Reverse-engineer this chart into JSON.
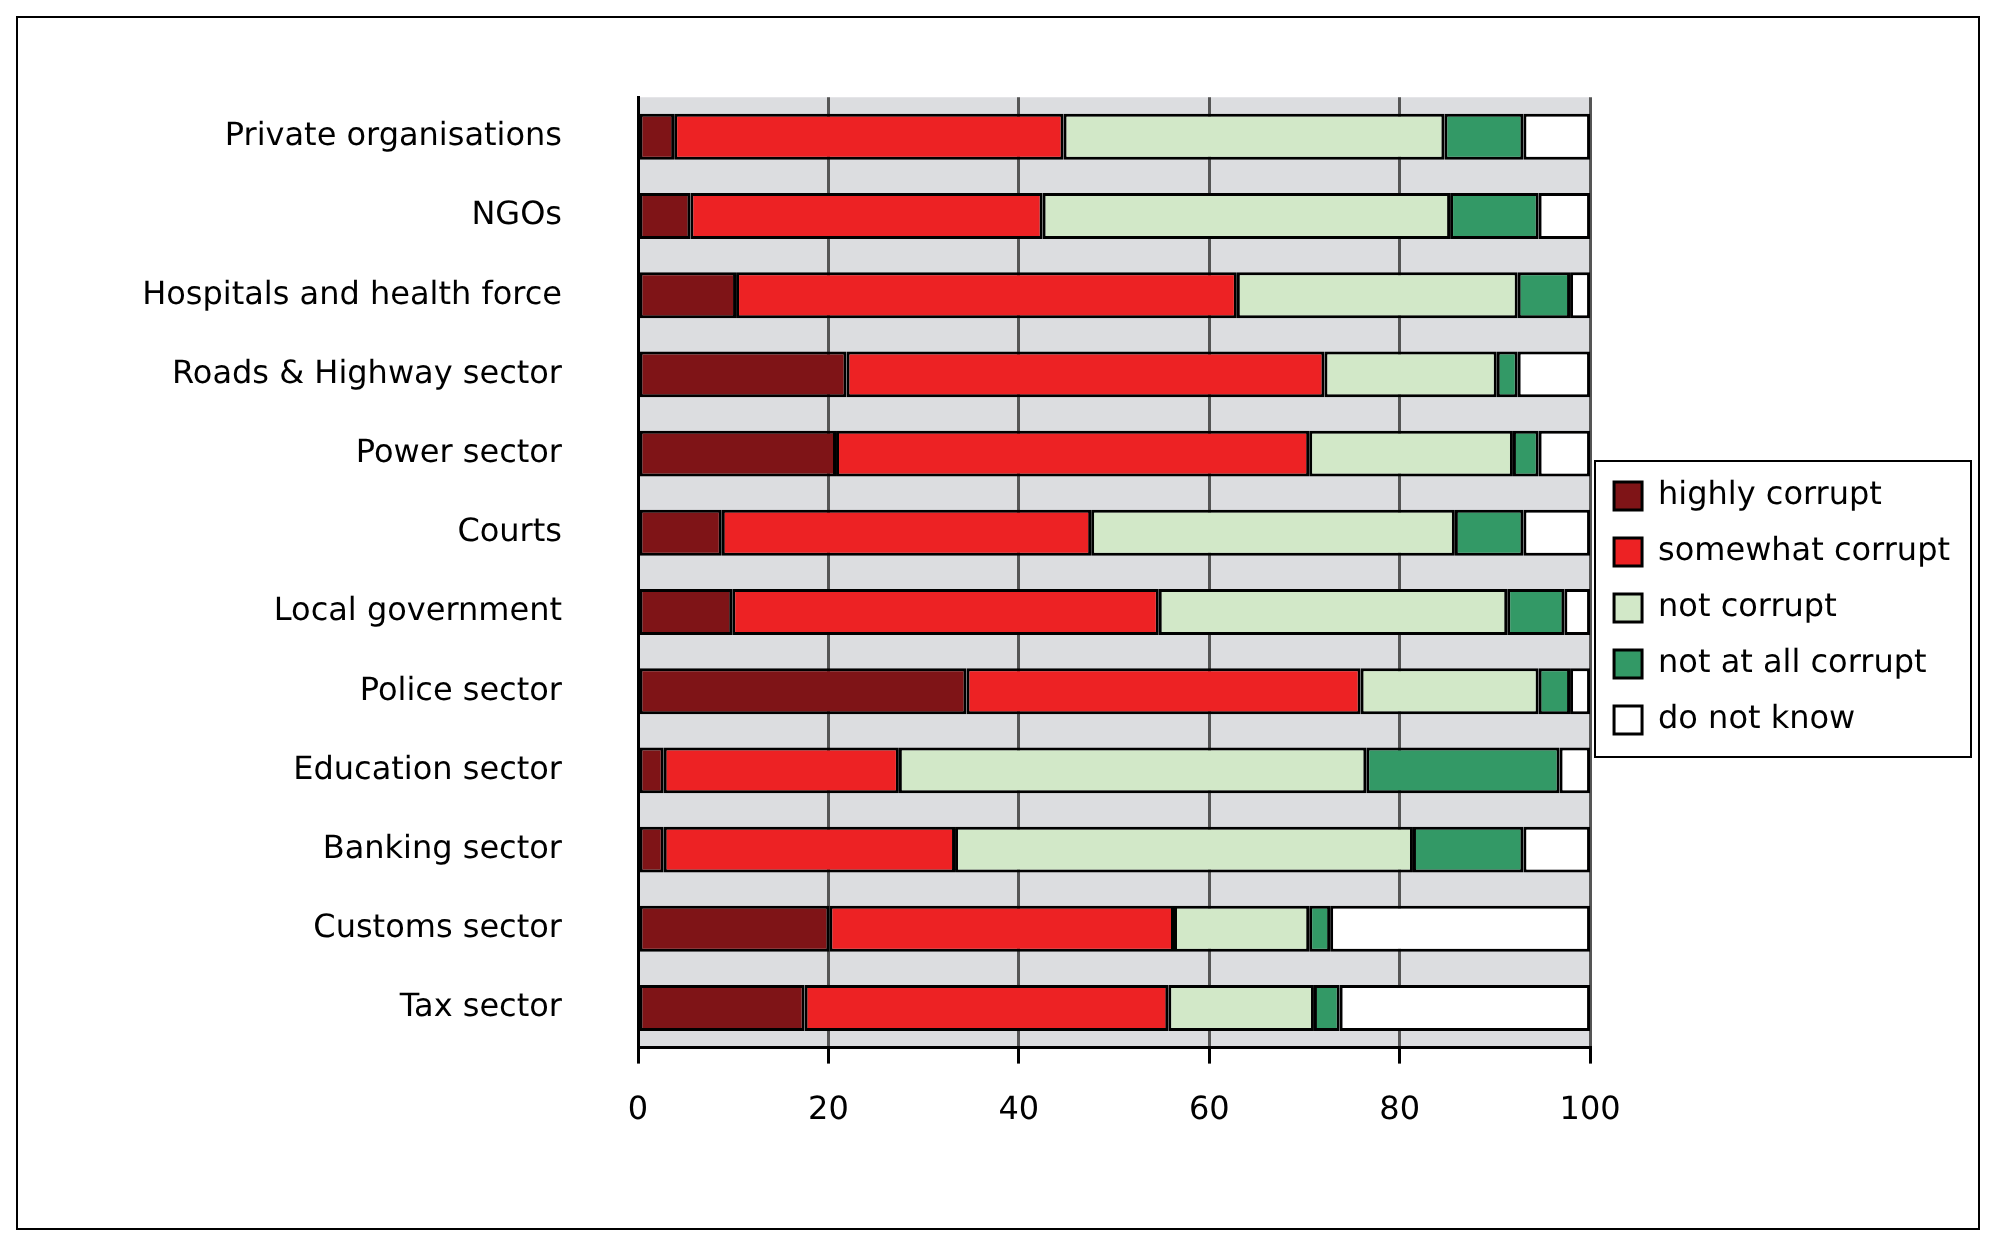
{
  "chart_data": {
    "type": "bar",
    "orientation": "horizontal",
    "stacked": true,
    "categories": [
      "Private organisations",
      "NGOs",
      "Hospitals and health force",
      "Roads & Highway sector",
      "Power sector",
      "Courts",
      "Local government",
      "Police sector",
      "Education sector",
      "Banking sector",
      "Customs sector",
      "Tax sector"
    ],
    "series": [
      {
        "name": "highly corrupt",
        "color": "#7f1417",
        "values": [
          3.8,
          5.5,
          10.3,
          21.9,
          20.8,
          8.8,
          9.9,
          34.5,
          2.7,
          2.7,
          20.1,
          17.5
        ]
      },
      {
        "name": "somewhat corrupt",
        "color": "#ed2224",
        "values": [
          40.9,
          37,
          52.6,
          50.2,
          49.7,
          38.8,
          44.8,
          41.4,
          24.7,
          30.6,
          36.2,
          38.2
        ]
      },
      {
        "name": "not corrupt",
        "color": "#d2e8c8",
        "values": [
          40,
          42.8,
          29.5,
          18.1,
          21.4,
          38.2,
          36.6,
          18.7,
          49.1,
          48.1,
          14.2,
          15.3
        ]
      },
      {
        "name": "not at all corrupt",
        "color": "#339966",
        "values": [
          8.3,
          9.3,
          5.5,
          2.2,
          2.7,
          7.2,
          6,
          3.3,
          20.3,
          11.6,
          2.2,
          2.7
        ]
      },
      {
        "name": "do not know",
        "color": "#ffffff",
        "values": [
          7,
          5.4,
          2.1,
          7.6,
          5.4,
          7,
          2.7,
          2.1,
          3.2,
          7,
          27.3,
          26.3
        ]
      }
    ],
    "xlim": [
      0,
      100
    ],
    "xticks": [
      0,
      20,
      40,
      60,
      80,
      100
    ],
    "grid": "x",
    "legend": "right"
  }
}
